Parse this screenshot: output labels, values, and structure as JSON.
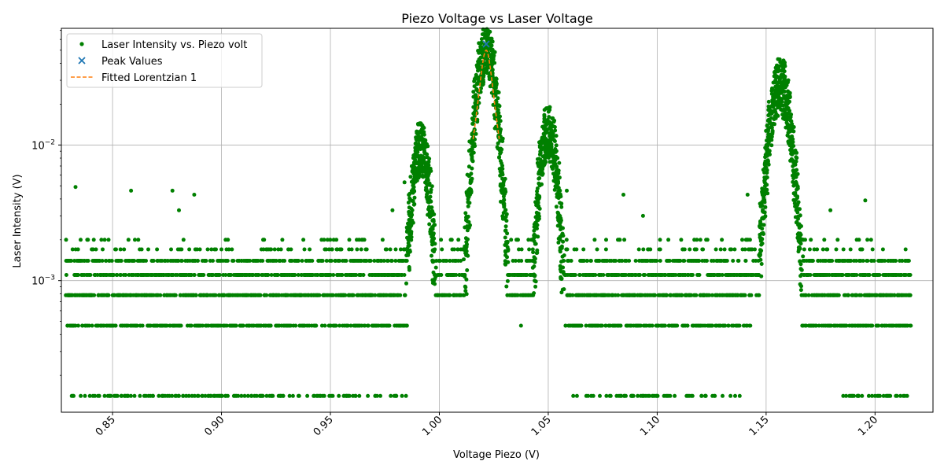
{
  "chart_data": {
    "type": "scatter",
    "title": "Piezo Voltage vs Laser Voltage",
    "xlabel": "Voltage Piezo (V)",
    "ylabel": "Laser Intensity (V)",
    "yscale": "log",
    "xlim": [
      0.8265,
      1.2266
    ],
    "ylim": [
      0.000107,
      0.0725
    ],
    "grid": true,
    "legend_position": "upper left",
    "x_ticks": [
      {
        "value": 0.85,
        "label": "0.85"
      },
      {
        "value": 0.9,
        "label": "0.90"
      },
      {
        "value": 0.95,
        "label": "0.95"
      },
      {
        "value": 1.0,
        "label": "1.00"
      },
      {
        "value": 1.05,
        "label": "1.05"
      },
      {
        "value": 1.1,
        "label": "1.10"
      },
      {
        "value": 1.15,
        "label": "1.15"
      },
      {
        "value": 1.2,
        "label": "1.20"
      }
    ],
    "y_ticks": [
      {
        "value": 0.001,
        "base": "10",
        "exp": "−3"
      },
      {
        "value": 0.01,
        "base": "10",
        "exp": "−2"
      }
    ],
    "x_range_data": [
      0.8285,
      1.2165
    ],
    "noise_levels": [
      0.000141,
      0.000465,
      0.00078,
      0.0011,
      0.0014,
      0.0017,
      0.002
    ],
    "peaks": [
      {
        "center": 0.9915,
        "amplitude": 0.0095,
        "width": 0.0048
      },
      {
        "center": 1.0215,
        "amplitude": 0.05,
        "width": 0.0055
      },
      {
        "center": 1.05,
        "amplitude": 0.0125,
        "width": 0.0048
      },
      {
        "center": 1.1565,
        "amplitude": 0.028,
        "width": 0.006
      }
    ],
    "series": [
      {
        "name": "Laser Intensity vs. Piezo volt",
        "kind": "scatter",
        "color": "#008000"
      },
      {
        "name": "Peak Values",
        "kind": "marker-x",
        "color": "#1f77b4",
        "points": [
          {
            "x": 1.0215,
            "y": 0.0555
          }
        ]
      },
      {
        "name": "Fitted Lorentzian 1",
        "kind": "dashed-line",
        "color": "#ff7f0e",
        "center": 1.0215,
        "amplitude": 0.05,
        "gamma": 0.0032,
        "x_range": [
          1.0155,
          1.0275
        ]
      }
    ]
  }
}
